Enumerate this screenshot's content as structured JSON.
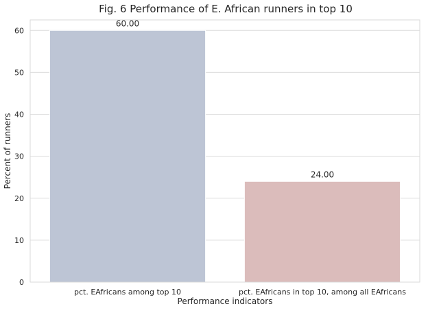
{
  "chart_data": {
    "type": "bar",
    "title": "Fig. 6 Performance of E. African runners in top 10",
    "xlabel": "Performance indicators",
    "ylabel": "Percent of runners",
    "categories": [
      "pct. EAfricans among top 10",
      "pct. EAfricans in top 10, among all EAfricans"
    ],
    "values": [
      60,
      24
    ],
    "value_labels": [
      "60.00",
      "24.00"
    ],
    "bar_colors": [
      "#bdc5d5",
      "#dbbcbb"
    ],
    "ylim": [
      0,
      62.5
    ],
    "yticks": [
      0,
      10,
      20,
      30,
      40,
      50,
      60
    ],
    "grid": true,
    "legend": "none"
  }
}
